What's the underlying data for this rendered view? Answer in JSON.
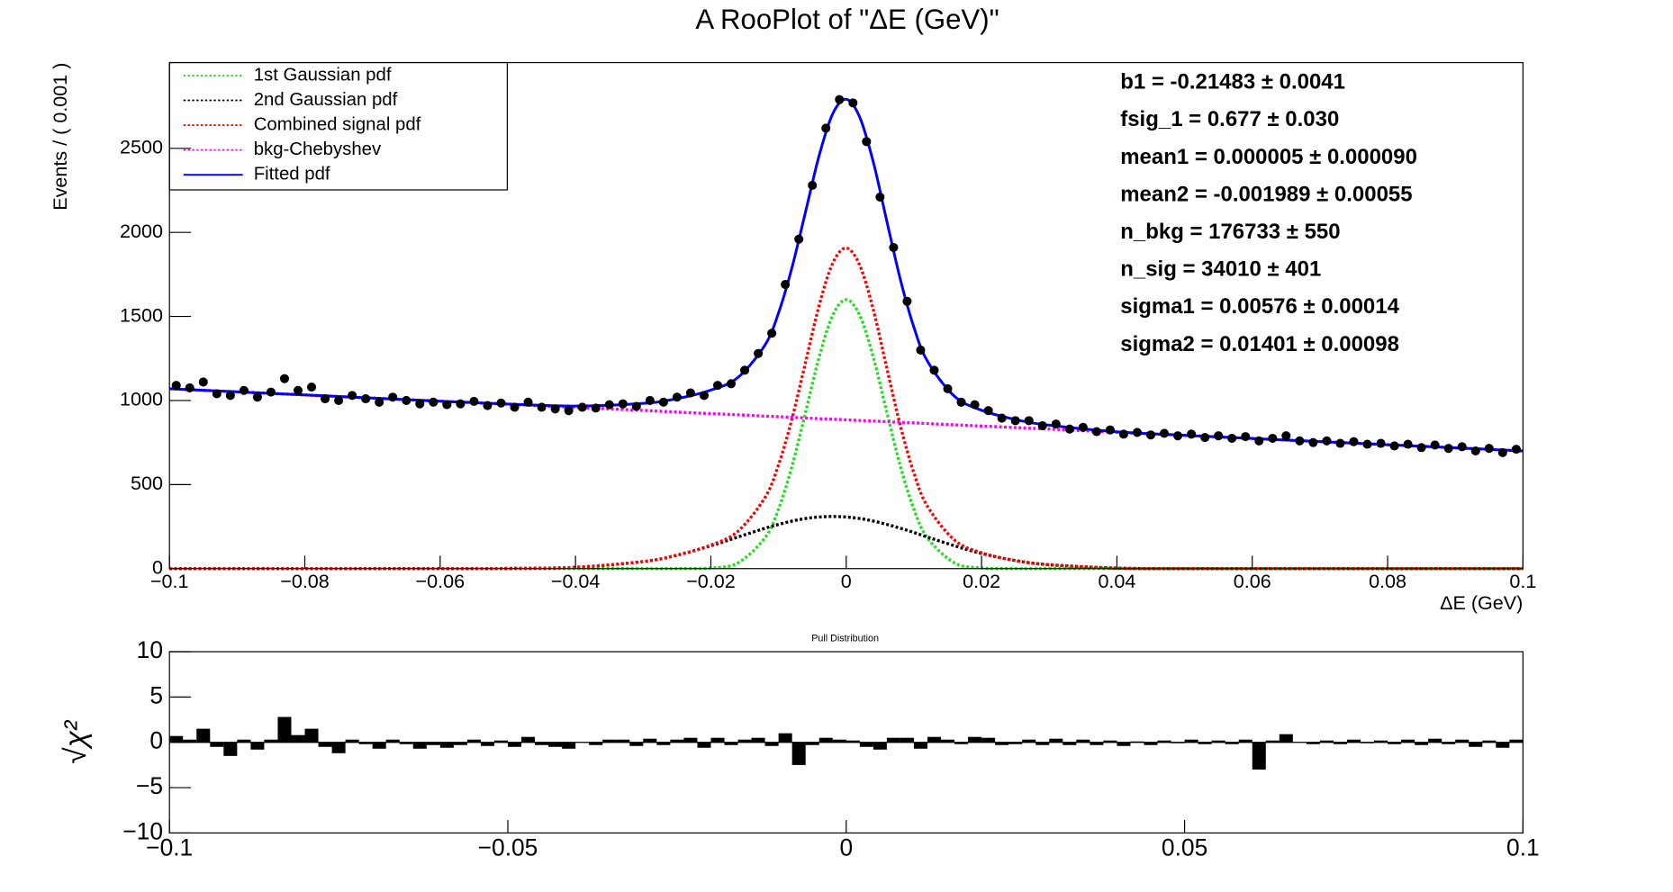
{
  "chart_data": [
    {
      "type": "rooplot",
      "title": "A RooPlot of \"ΔE (GeV)\"",
      "xlabel": "ΔE (GeV)",
      "ylabel": "Events / ( 0.001 )",
      "xlim": [
        -0.1,
        0.1
      ],
      "ylim": [
        0,
        3010
      ],
      "xticks": [
        {
          "value": -0.1,
          "label": "−0.1"
        },
        {
          "value": -0.08,
          "label": "−0.08"
        },
        {
          "value": -0.06,
          "label": "−0.06"
        },
        {
          "value": -0.04,
          "label": "−0.04"
        },
        {
          "value": -0.02,
          "label": "−0.02"
        },
        0,
        {
          "value": 0.02,
          "label": "0.02"
        },
        {
          "value": 0.04,
          "label": "0.04"
        },
        {
          "value": 0.06,
          "label": "0.06"
        },
        {
          "value": 0.08,
          "label": "0.08"
        },
        {
          "value": 0.1,
          "label": "0.1"
        }
      ],
      "yticks": [
        0,
        500,
        1000,
        1500,
        2000,
        2500
      ],
      "legend": "top-left",
      "x": [
        -0.1,
        -0.08,
        -0.06,
        -0.05,
        -0.04,
        -0.03,
        -0.025,
        -0.02,
        -0.016,
        -0.012,
        -0.01,
        -0.008,
        -0.006,
        -0.004,
        -0.002,
        0,
        0.002,
        0.004,
        0.006,
        0.008,
        0.01,
        0.012,
        0.016,
        0.02,
        0.025,
        0.03,
        0.04,
        0.05,
        0.06,
        0.08,
        0.1
      ],
      "series": [
        {
          "name": "1st Gaussian pdf",
          "color": "#22dd22",
          "style": "dotted",
          "values": [
            0,
            0,
            0,
            0,
            0,
            0,
            0,
            4,
            34,
            183,
            354,
            610,
            930,
            1258,
            1506,
            1600,
            1506,
            1258,
            930,
            610,
            354,
            183,
            34,
            4,
            0,
            0,
            0,
            0,
            0,
            0,
            0
          ]
        },
        {
          "name": "2nd Gaussian pdf",
          "color": "#000000",
          "style": "dotted",
          "values": [
            0,
            0,
            0,
            1,
            8,
            42,
            80,
            136,
            188,
            240,
            263,
            283,
            298,
            307,
            310,
            307,
            298,
            283,
            263,
            240,
            215,
            188,
            136,
            90,
            48,
            23,
            3,
            0,
            0,
            0,
            0
          ]
        },
        {
          "name": "Combined signal pdf",
          "color": "#ff0000",
          "style": "dotted",
          "values": [
            0,
            0,
            0,
            1,
            8,
            42,
            80,
            140,
            222,
            423,
            617,
            893,
            1228,
            1565,
            1816,
            1907,
            1804,
            1541,
            1193,
            850,
            569,
            371,
            170,
            94,
            48,
            23,
            3,
            0,
            0,
            0,
            0
          ]
        },
        {
          "name": "bkg-Chebyshev",
          "color": "#ff00ff",
          "style": "dotted",
          "values": [
            1070,
            1033,
            996,
            978,
            959,
            941,
            931,
            922,
            915,
            907,
            904,
            900,
            896,
            892,
            889,
            885,
            881,
            878,
            874,
            870,
            867,
            863,
            855,
            848,
            839,
            830,
            811,
            793,
            774,
            737,
            700
          ]
        },
        {
          "name": "Fitted pdf",
          "color": "#0000ff",
          "style": "solid",
          "values": [
            1070,
            1033,
            996,
            979,
            967,
            983,
            1011,
            1062,
            1137,
            1330,
            1521,
            1793,
            2124,
            2457,
            2705,
            2792,
            2685,
            2419,
            2067,
            1720,
            1436,
            1234,
            1025,
            942,
            887,
            853,
            814,
            793,
            774,
            737,
            700
          ]
        }
      ],
      "points": {
        "color": "#000000",
        "x": [
          -0.099,
          -0.097,
          -0.095,
          -0.093,
          -0.091,
          -0.089,
          -0.087,
          -0.085,
          -0.083,
          -0.081,
          -0.079,
          -0.077,
          -0.075,
          -0.073,
          -0.071,
          -0.069,
          -0.067,
          -0.065,
          -0.063,
          -0.061,
          -0.059,
          -0.057,
          -0.055,
          -0.053,
          -0.051,
          -0.049,
          -0.047,
          -0.045,
          -0.043,
          -0.041,
          -0.039,
          -0.037,
          -0.035,
          -0.033,
          -0.031,
          -0.029,
          -0.027,
          -0.025,
          -0.023,
          -0.021,
          -0.019,
          -0.017,
          -0.015,
          -0.013,
          -0.011,
          -0.009,
          -0.007,
          -0.005,
          -0.003,
          -0.001,
          0.001,
          0.003,
          0.005,
          0.007,
          0.009,
          0.011,
          0.013,
          0.015,
          0.017,
          0.019,
          0.021,
          0.023,
          0.025,
          0.027,
          0.029,
          0.031,
          0.033,
          0.035,
          0.037,
          0.039,
          0.041,
          0.043,
          0.045,
          0.047,
          0.049,
          0.051,
          0.053,
          0.055,
          0.057,
          0.059,
          0.061,
          0.063,
          0.065,
          0.067,
          0.069,
          0.071,
          0.073,
          0.075,
          0.077,
          0.079,
          0.081,
          0.083,
          0.085,
          0.087,
          0.089,
          0.091,
          0.093,
          0.095,
          0.097,
          0.099
        ],
        "values": [
          1090,
          1075,
          1110,
          1040,
          1030,
          1060,
          1020,
          1050,
          1130,
          1060,
          1080,
          1010,
          1000,
          1030,
          1010,
          990,
          1020,
          1000,
          980,
          990,
          975,
          980,
          995,
          970,
          985,
          960,
          990,
          960,
          950,
          940,
          960,
          955,
          975,
          980,
          965,
          1000,
          990,
          1020,
          1045,
          1030,
          1090,
          1100,
          1180,
          1280,
          1400,
          1690,
          1960,
          2280,
          2620,
          2790,
          2770,
          2540,
          2210,
          1910,
          1590,
          1300,
          1180,
          1070,
          990,
          975,
          940,
          895,
          880,
          880,
          850,
          860,
          830,
          840,
          815,
          825,
          800,
          810,
          795,
          805,
          790,
          800,
          780,
          790,
          775,
          785,
          760,
          775,
          790,
          760,
          750,
          760,
          745,
          755,
          740,
          745,
          730,
          740,
          720,
          735,
          715,
          725,
          700,
          715,
          690,
          710
        ]
      },
      "annotations": [
        "b1 = -0.21483  ± 0.0041",
        "fsig_1 =  0.677  ± 0.030",
        "mean1 =  0.000005  ± 0.000090",
        "mean2 = -0.001989  ± 0.00055",
        "n_bkg =  176733  ± 550",
        "n_sig =  34010  ± 401",
        "sigma1 =  0.00576  ± 0.00014",
        "sigma2 =  0.01401 ± 0.00098"
      ]
    },
    {
      "type": "histogram",
      "title": "Pull Distribution",
      "ylabel": "√χ²",
      "xlim": [
        -0.1,
        0.1
      ],
      "ylim": [
        -10,
        10
      ],
      "xticks": [
        {
          "value": -0.1,
          "label": "−0.1"
        },
        {
          "value": -0.05,
          "label": "−0.05"
        },
        0,
        {
          "value": 0.05,
          "label": "0.05"
        },
        {
          "value": 0.1,
          "label": "0.1"
        }
      ],
      "yticks": [
        {
          "value": -10,
          "label": "−10"
        },
        {
          "value": -5,
          "label": "−5"
        },
        0,
        5,
        10
      ],
      "color": "#000000",
      "bins": [
        -0.1,
        -0.098,
        -0.096,
        -0.094,
        -0.092,
        -0.09,
        -0.088,
        -0.086,
        -0.084,
        -0.082,
        -0.08,
        -0.078,
        -0.076,
        -0.074,
        -0.072,
        -0.07,
        -0.068,
        -0.066,
        -0.064,
        -0.062,
        -0.06,
        -0.058,
        -0.056,
        -0.054,
        -0.052,
        -0.05,
        -0.048,
        -0.046,
        -0.044,
        -0.042,
        -0.04,
        -0.038,
        -0.036,
        -0.034,
        -0.032,
        -0.03,
        -0.028,
        -0.026,
        -0.024,
        -0.022,
        -0.02,
        -0.018,
        -0.016,
        -0.014,
        -0.012,
        -0.01,
        -0.008,
        -0.006,
        -0.004,
        -0.002,
        0,
        0.002,
        0.004,
        0.006,
        0.008,
        0.01,
        0.012,
        0.014,
        0.016,
        0.018,
        0.02,
        0.022,
        0.024,
        0.026,
        0.028,
        0.03,
        0.032,
        0.034,
        0.036,
        0.038,
        0.04,
        0.042,
        0.044,
        0.046,
        0.048,
        0.05,
        0.052,
        0.054,
        0.056,
        0.058,
        0.06,
        0.062,
        0.064,
        0.066,
        0.068,
        0.07,
        0.072,
        0.074,
        0.076,
        0.078,
        0.08,
        0.082,
        0.084,
        0.086,
        0.088,
        0.09,
        0.092,
        0.094,
        0.096,
        0.098,
        0.1
      ],
      "values": [
        0.7,
        0.3,
        1.5,
        -0.5,
        -1.5,
        0.3,
        -0.8,
        0.3,
        2.8,
        0.8,
        1.5,
        -0.5,
        -1.2,
        0.3,
        -0.2,
        -0.7,
        0.3,
        -0.2,
        -0.7,
        -0.3,
        -0.6,
        -0.3,
        0.3,
        -0.4,
        0.2,
        -0.5,
        0.6,
        -0.3,
        -0.5,
        -0.7,
        0,
        -0.3,
        0.3,
        0.3,
        -0.4,
        0.4,
        -0.3,
        0.3,
        0.5,
        -0.6,
        0.5,
        -0.3,
        0.3,
        0.5,
        -0.4,
        1.0,
        -2.5,
        -0.3,
        0.5,
        0.3,
        0.2,
        -0.5,
        -0.8,
        0.5,
        0.5,
        -0.7,
        0.6,
        0.3,
        -0.2,
        0.6,
        0.5,
        -0.3,
        -0.2,
        0.3,
        -0.3,
        0.4,
        -0.3,
        0.3,
        -0.3,
        0.2,
        -0.4,
        0.1,
        -0.3,
        0.2,
        -0.1,
        0.3,
        -0.2,
        0.2,
        -0.2,
        0.3,
        -3.0,
        0.2,
        0.9,
        0,
        -0.2,
        0.2,
        -0.2,
        0.3,
        -0.1,
        0.2,
        -0.2,
        0.3,
        -0.3,
        0.4,
        -0.2,
        0.3,
        -0.5,
        0.2,
        -0.6,
        0.3
      ]
    }
  ]
}
